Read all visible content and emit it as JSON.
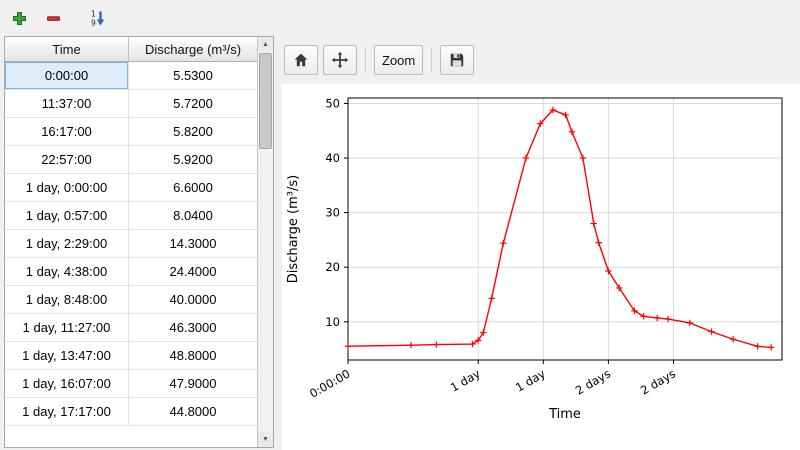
{
  "toolbar": {
    "buttons": [
      {
        "name": "add-row",
        "icon": "plus-icon"
      },
      {
        "name": "remove-row",
        "icon": "minus-icon"
      },
      {
        "name": "sort-rows",
        "icon": "sort-descending-icon"
      }
    ]
  },
  "table": {
    "columns": [
      "Time",
      "Discharge (m³/s)"
    ],
    "rows": [
      [
        "0:00:00",
        "5.5300"
      ],
      [
        "11:37:00",
        "5.7200"
      ],
      [
        "16:17:00",
        "5.8200"
      ],
      [
        "22:57:00",
        "5.9200"
      ],
      [
        "1 day, 0:00:00",
        "6.6000"
      ],
      [
        "1 day, 0:57:00",
        "8.0400"
      ],
      [
        "1 day, 2:29:00",
        "14.3000"
      ],
      [
        "1 day, 4:38:00",
        "24.4000"
      ],
      [
        "1 day, 8:48:00",
        "40.0000"
      ],
      [
        "1 day, 11:27:00",
        "46.3000"
      ],
      [
        "1 day, 13:47:00",
        "48.8000"
      ],
      [
        "1 day, 16:07:00",
        "47.9000"
      ],
      [
        "1 day, 17:17:00",
        "44.8000"
      ]
    ],
    "selected": {
      "row": 0,
      "col": 0
    }
  },
  "chart_toolbar": {
    "home_icon": "home-icon",
    "pan_icon": "pan-icon",
    "zoom_label": "Zoom",
    "save_icon": "save-icon"
  },
  "chart_data": {
    "type": "line",
    "title": "",
    "xlabel": "Time",
    "ylabel": "Discharge (m³/s)",
    "legend": "none",
    "grid": true,
    "line_color": "#ff0000",
    "marker": "plus",
    "x_hours": [
      0,
      11.62,
      16.28,
      22.95,
      24,
      24.95,
      26.48,
      28.63,
      32.8,
      35.45,
      37.78,
      40.12,
      41.28,
      43.3,
      45.3,
      46.2,
      48.0,
      50.0,
      52.8,
      54.5,
      57.0,
      59.0,
      63.0,
      67.0,
      71.0,
      75.5,
      78.0
    ],
    "y": [
      5.53,
      5.72,
      5.82,
      5.92,
      6.6,
      8.04,
      14.3,
      24.4,
      40.0,
      46.3,
      48.8,
      47.9,
      44.8,
      40.0,
      28.0,
      24.5,
      19.3,
      16.2,
      12.0,
      11.0,
      10.7,
      10.5,
      9.8,
      8.2,
      6.8,
      5.5,
      5.3
    ],
    "xlim": [
      0,
      80
    ],
    "ylim": [
      3,
      51
    ],
    "x_ticks": [
      0,
      24,
      36,
      48,
      60
    ],
    "x_tick_labels": [
      "0:00:00",
      "1 day",
      "1 day",
      "2 days",
      "2 days"
    ],
    "x_tick_rotation": 30,
    "y_ticks": [
      10,
      20,
      30,
      40,
      50
    ]
  }
}
